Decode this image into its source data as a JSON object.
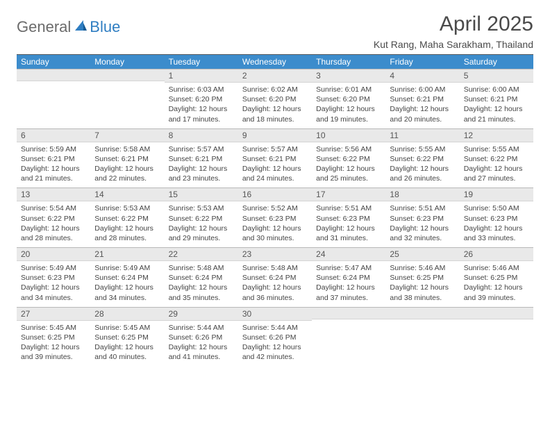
{
  "logo": {
    "part1": "General",
    "part2": "Blue"
  },
  "title": "April 2025",
  "location": "Kut Rang, Maha Sarakham, Thailand",
  "colors": {
    "header_bg": "#3c8ccc",
    "daybar_bg": "#e9e9e9",
    "text": "#444444",
    "logo_gray": "#6b6b6b",
    "logo_blue": "#2f7ec2"
  },
  "weekdays": [
    "Sunday",
    "Monday",
    "Tuesday",
    "Wednesday",
    "Thursday",
    "Friday",
    "Saturday"
  ],
  "weeks": [
    [
      null,
      null,
      {
        "n": "1",
        "sr": "6:03 AM",
        "ss": "6:20 PM",
        "dl": "12 hours and 17 minutes."
      },
      {
        "n": "2",
        "sr": "6:02 AM",
        "ss": "6:20 PM",
        "dl": "12 hours and 18 minutes."
      },
      {
        "n": "3",
        "sr": "6:01 AM",
        "ss": "6:20 PM",
        "dl": "12 hours and 19 minutes."
      },
      {
        "n": "4",
        "sr": "6:00 AM",
        "ss": "6:21 PM",
        "dl": "12 hours and 20 minutes."
      },
      {
        "n": "5",
        "sr": "6:00 AM",
        "ss": "6:21 PM",
        "dl": "12 hours and 21 minutes."
      }
    ],
    [
      {
        "n": "6",
        "sr": "5:59 AM",
        "ss": "6:21 PM",
        "dl": "12 hours and 21 minutes."
      },
      {
        "n": "7",
        "sr": "5:58 AM",
        "ss": "6:21 PM",
        "dl": "12 hours and 22 minutes."
      },
      {
        "n": "8",
        "sr": "5:57 AM",
        "ss": "6:21 PM",
        "dl": "12 hours and 23 minutes."
      },
      {
        "n": "9",
        "sr": "5:57 AM",
        "ss": "6:21 PM",
        "dl": "12 hours and 24 minutes."
      },
      {
        "n": "10",
        "sr": "5:56 AM",
        "ss": "6:22 PM",
        "dl": "12 hours and 25 minutes."
      },
      {
        "n": "11",
        "sr": "5:55 AM",
        "ss": "6:22 PM",
        "dl": "12 hours and 26 minutes."
      },
      {
        "n": "12",
        "sr": "5:55 AM",
        "ss": "6:22 PM",
        "dl": "12 hours and 27 minutes."
      }
    ],
    [
      {
        "n": "13",
        "sr": "5:54 AM",
        "ss": "6:22 PM",
        "dl": "12 hours and 28 minutes."
      },
      {
        "n": "14",
        "sr": "5:53 AM",
        "ss": "6:22 PM",
        "dl": "12 hours and 28 minutes."
      },
      {
        "n": "15",
        "sr": "5:53 AM",
        "ss": "6:22 PM",
        "dl": "12 hours and 29 minutes."
      },
      {
        "n": "16",
        "sr": "5:52 AM",
        "ss": "6:23 PM",
        "dl": "12 hours and 30 minutes."
      },
      {
        "n": "17",
        "sr": "5:51 AM",
        "ss": "6:23 PM",
        "dl": "12 hours and 31 minutes."
      },
      {
        "n": "18",
        "sr": "5:51 AM",
        "ss": "6:23 PM",
        "dl": "12 hours and 32 minutes."
      },
      {
        "n": "19",
        "sr": "5:50 AM",
        "ss": "6:23 PM",
        "dl": "12 hours and 33 minutes."
      }
    ],
    [
      {
        "n": "20",
        "sr": "5:49 AM",
        "ss": "6:23 PM",
        "dl": "12 hours and 34 minutes."
      },
      {
        "n": "21",
        "sr": "5:49 AM",
        "ss": "6:24 PM",
        "dl": "12 hours and 34 minutes."
      },
      {
        "n": "22",
        "sr": "5:48 AM",
        "ss": "6:24 PM",
        "dl": "12 hours and 35 minutes."
      },
      {
        "n": "23",
        "sr": "5:48 AM",
        "ss": "6:24 PM",
        "dl": "12 hours and 36 minutes."
      },
      {
        "n": "24",
        "sr": "5:47 AM",
        "ss": "6:24 PM",
        "dl": "12 hours and 37 minutes."
      },
      {
        "n": "25",
        "sr": "5:46 AM",
        "ss": "6:25 PM",
        "dl": "12 hours and 38 minutes."
      },
      {
        "n": "26",
        "sr": "5:46 AM",
        "ss": "6:25 PM",
        "dl": "12 hours and 39 minutes."
      }
    ],
    [
      {
        "n": "27",
        "sr": "5:45 AM",
        "ss": "6:25 PM",
        "dl": "12 hours and 39 minutes."
      },
      {
        "n": "28",
        "sr": "5:45 AM",
        "ss": "6:25 PM",
        "dl": "12 hours and 40 minutes."
      },
      {
        "n": "29",
        "sr": "5:44 AM",
        "ss": "6:26 PM",
        "dl": "12 hours and 41 minutes."
      },
      {
        "n": "30",
        "sr": "5:44 AM",
        "ss": "6:26 PM",
        "dl": "12 hours and 42 minutes."
      },
      null,
      null,
      null
    ]
  ],
  "labels": {
    "sunrise": "Sunrise:",
    "sunset": "Sunset:",
    "daylight": "Daylight:"
  }
}
